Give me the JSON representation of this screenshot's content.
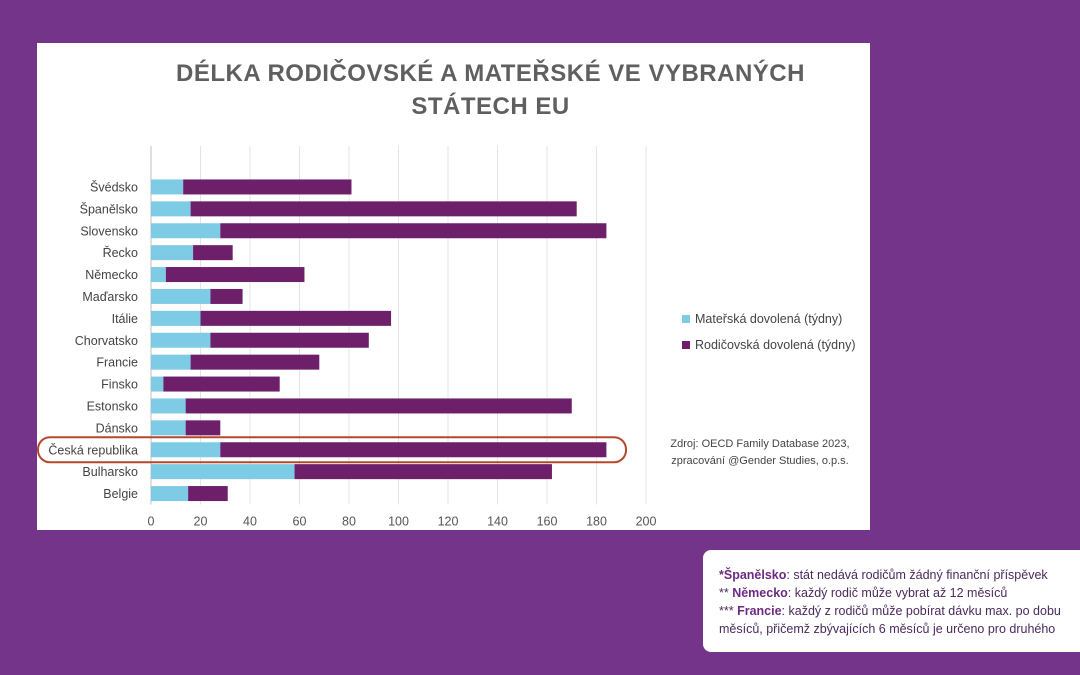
{
  "chart_data": {
    "type": "bar",
    "stacked": true,
    "orientation": "horizontal",
    "title": "DÉLKA RODIČOVSKÉ A MATEŘSKÉ VE VYBRANÝCH\nSTÁTECH EU",
    "categories": [
      "Švédsko",
      "Španělsko",
      "Slovensko",
      "Řecko",
      "Německo",
      "Maďarsko",
      "Itálie",
      "Chorvatsko",
      "Francie",
      "Finsko",
      "Estonsko",
      "Dánsko",
      "Česká republika",
      "Bulharsko",
      "Belgie"
    ],
    "series": [
      {
        "name": "Mateřská dovolená (týdny)",
        "color": "#7ecbe6",
        "values": [
          13,
          16,
          28,
          17,
          6,
          24,
          20,
          24,
          16,
          5,
          14,
          14,
          28,
          58,
          15
        ]
      },
      {
        "name": "Rodičovská dovolená (týdny)",
        "color": "#6d1f6a",
        "values": [
          68,
          156,
          156,
          16,
          56,
          13,
          77,
          64,
          52,
          47,
          156,
          14,
          156,
          104,
          16
        ]
      }
    ],
    "xlim": [
      0,
      200
    ],
    "xticks": [
      0,
      20,
      40,
      60,
      80,
      100,
      120,
      140,
      160,
      180,
      200
    ],
    "grid": true,
    "legend_position": "right",
    "highlighted_category": "Česká republika",
    "source_lines": [
      "Zdroj: OECD Family Database 2023,",
      "zpracování @Gender Studies, o.p.s."
    ]
  },
  "notes": [
    {
      "bold": "*Španělsko",
      "text": ": stát nedává rodičům žádný finanční příspěvek"
    },
    {
      "bold": "** Německo",
      "text": ": každý rodič může vybrat až 12 měsíců",
      "bold_offset": 3
    },
    {
      "bold": "*** Francie",
      "text": ": každý z rodičů může pobírat dávku max. po dobu",
      "bold_offset": 4
    },
    {
      "bold": "",
      "text": "měsíců, přičemž zbývajících 6 měsíců je určeno pro druhého"
    }
  ],
  "colors": {
    "background": "#74348a",
    "highlight": "#b5482a"
  }
}
